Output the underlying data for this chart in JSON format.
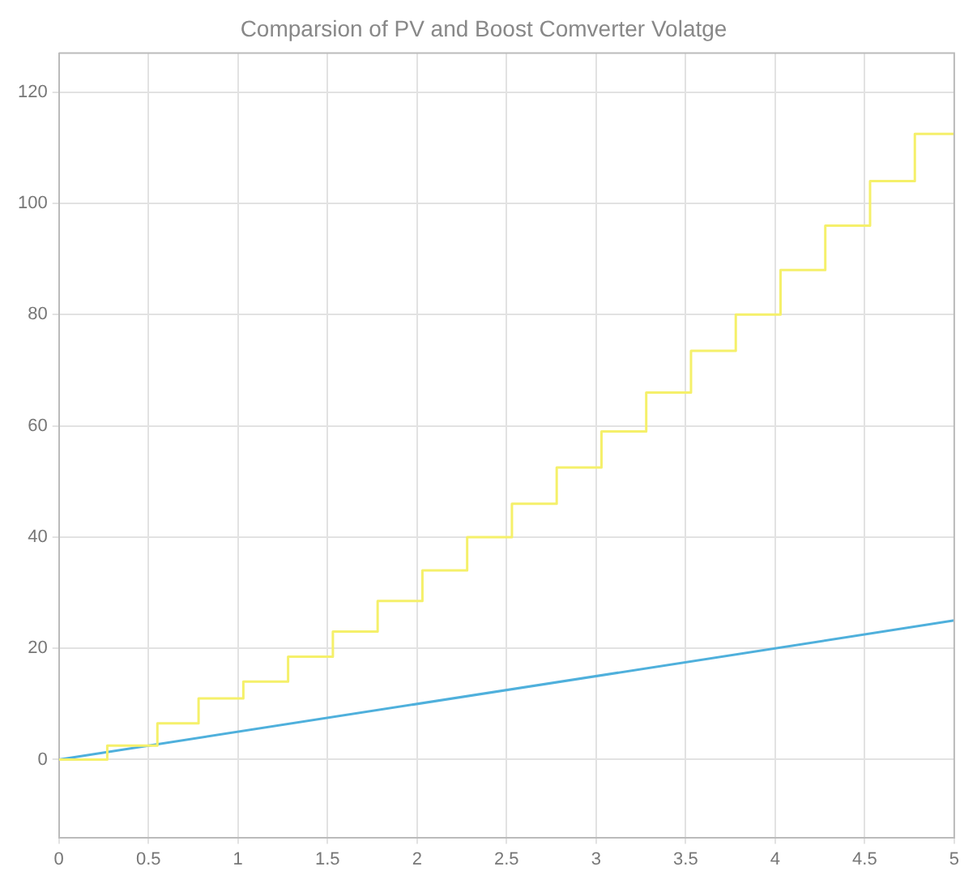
{
  "chart_data": {
    "type": "line",
    "title": "Comparsion of PV and Boost Comverter Volatge",
    "series": [
      {
        "type": "step",
        "color": "#f5f06a",
        "x": [
          0,
          0.27,
          0.55,
          0.78,
          1.03,
          1.28,
          1.53,
          1.78,
          2.03,
          2.28,
          2.53,
          2.78,
          3.03,
          3.28,
          3.53,
          3.78,
          4.03,
          4.28,
          4.53,
          4.78,
          5
        ],
        "values": [
          0,
          2.5,
          6.5,
          11,
          14,
          18.5,
          23,
          28.5,
          34,
          40,
          46,
          52.5,
          59,
          66,
          73.5,
          80,
          88,
          96,
          104,
          112.5,
          112.5
        ]
      },
      {
        "type": "line",
        "color": "#4fb0dc",
        "x": [
          0,
          5
        ],
        "values": [
          0,
          25
        ]
      }
    ],
    "xlim": [
      0,
      5
    ],
    "xticks": [
      0,
      0.5,
      1,
      1.5,
      2,
      2.5,
      3,
      3.5,
      4,
      4.5,
      5
    ],
    "ylim": [
      -14,
      127
    ],
    "yticks": [
      0,
      20,
      40,
      60,
      80,
      100,
      120
    ],
    "grid": true,
    "legend": false,
    "marker": "none",
    "line_style": "solid"
  }
}
